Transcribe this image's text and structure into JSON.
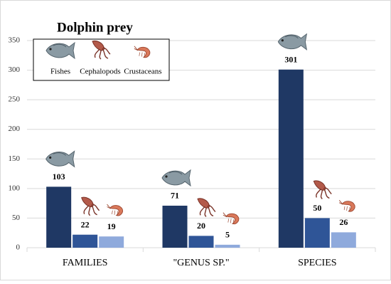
{
  "chart_data": {
    "type": "bar",
    "title": "Dolphin prey",
    "categories": [
      "FAMILIES",
      "\"GENUS SP.\"",
      "SPECIES"
    ],
    "series": [
      {
        "name": "Fishes",
        "color": "#1f3864",
        "values": [
          103,
          71,
          301
        ]
      },
      {
        "name": "Cephalopods",
        "color": "#2f5597",
        "values": [
          22,
          20,
          50
        ]
      },
      {
        "name": "Crustaceans",
        "color": "#8faadc",
        "values": [
          19,
          5,
          26
        ]
      }
    ],
    "ylim": [
      0,
      350
    ],
    "yticks": [
      0,
      50,
      100,
      150,
      200,
      250,
      300,
      350
    ],
    "grid": true
  }
}
